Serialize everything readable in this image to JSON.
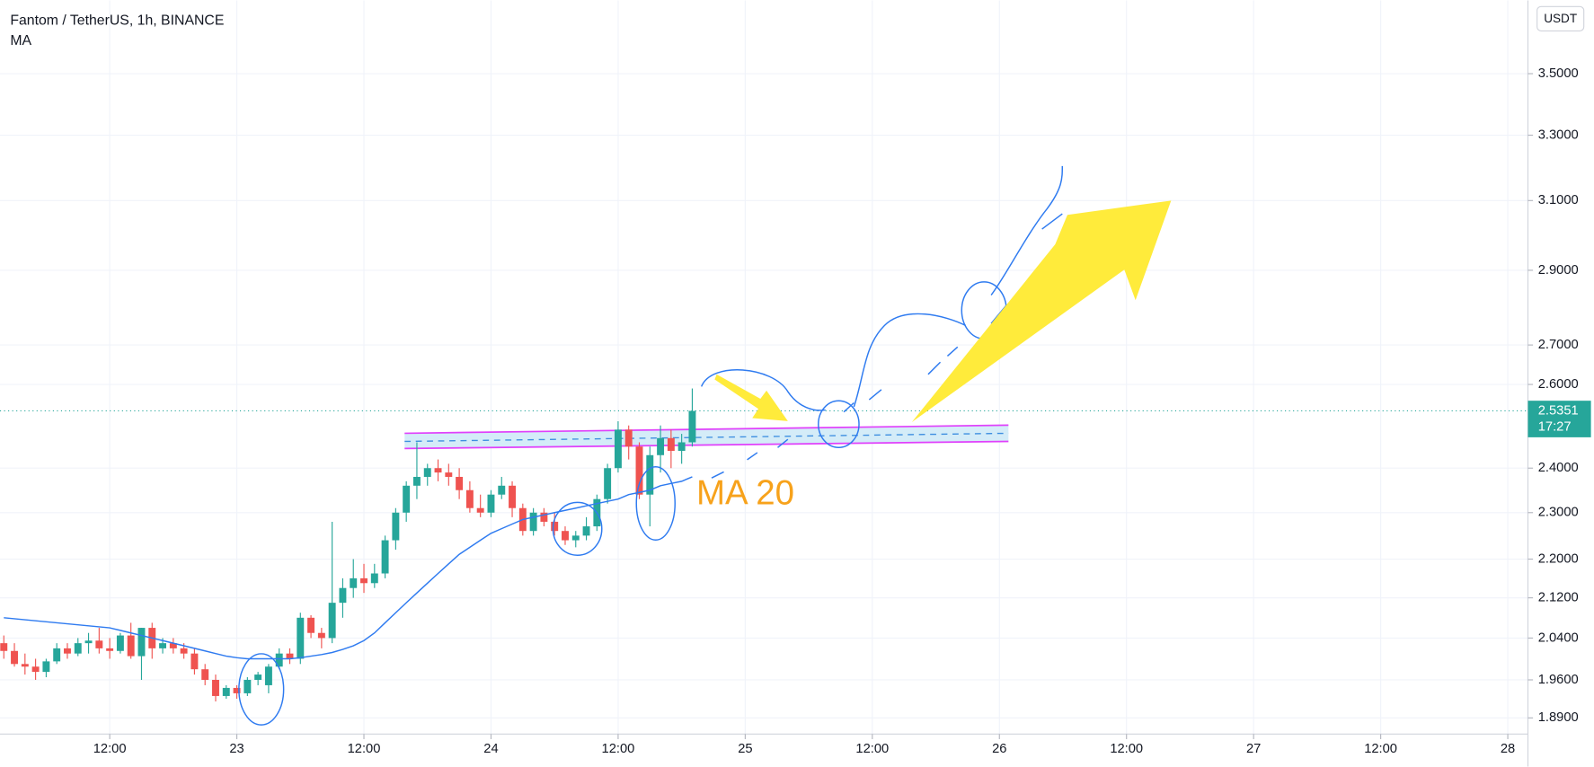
{
  "chart_data": {
    "type": "candlestick",
    "title": "Fantom / TetherUS, 1h, BINANCE",
    "y_unit": "USDT",
    "log_scale": true,
    "grid": true,
    "up_color": "#26a69a",
    "down_color": "#ef5350",
    "candles": {
      "x": [
        2,
        3,
        4,
        5,
        6,
        7,
        8,
        9,
        10,
        11,
        12,
        13,
        14,
        15,
        16,
        17,
        18,
        19,
        20,
        21,
        22,
        23,
        24,
        25,
        26,
        27,
        28,
        29,
        30,
        31,
        32,
        33,
        34,
        35,
        36,
        37,
        38,
        39,
        40,
        41,
        42,
        43,
        44,
        45,
        46,
        47,
        48,
        49,
        50,
        51,
        52,
        53,
        54,
        55,
        56,
        57,
        58,
        59,
        60,
        61,
        62,
        63,
        64,
        65,
        66,
        67
      ],
      "open": [
        2.03,
        2.015,
        1.99,
        1.985,
        1.975,
        1.995,
        2.02,
        2.01,
        2.03,
        2.035,
        2.02,
        2.015,
        2.045,
        2.005,
        2.06,
        2.02,
        2.03,
        2.02,
        2.01,
        1.98,
        1.96,
        1.93,
        1.945,
        1.935,
        1.96,
        1.95,
        1.985,
        2.01,
        2.0,
        2.08,
        2.05,
        2.04,
        2.11,
        2.14,
        2.16,
        2.15,
        2.17,
        2.24,
        2.3,
        2.36,
        2.38,
        2.4,
        2.39,
        2.38,
        2.35,
        2.31,
        2.3,
        2.34,
        2.36,
        2.31,
        2.26,
        2.3,
        2.28,
        2.26,
        2.24,
        2.25,
        2.27,
        2.33,
        2.4,
        2.49,
        2.45,
        2.34,
        2.43,
        2.47,
        2.44,
        2.46
      ],
      "high": [
        2.045,
        2.03,
        2.01,
        2.0,
        2.0,
        2.03,
        2.03,
        2.04,
        2.05,
        2.06,
        2.04,
        2.05,
        2.07,
        2.06,
        2.07,
        2.04,
        2.04,
        2.03,
        2.02,
        1.99,
        1.97,
        1.95,
        1.95,
        1.965,
        1.975,
        1.99,
        2.02,
        2.02,
        2.09,
        2.085,
        2.06,
        2.28,
        2.16,
        2.2,
        2.19,
        2.19,
        2.25,
        2.31,
        2.37,
        2.46,
        2.41,
        2.42,
        2.41,
        2.4,
        2.37,
        2.34,
        2.35,
        2.38,
        2.37,
        2.32,
        2.31,
        2.31,
        2.3,
        2.27,
        2.26,
        2.29,
        2.34,
        2.41,
        2.51,
        2.5,
        2.46,
        2.45,
        2.5,
        2.49,
        2.48,
        2.59
      ],
      "low": [
        2.0,
        1.985,
        1.97,
        1.96,
        1.965,
        1.99,
        2.0,
        2.005,
        2.01,
        2.01,
        2.0,
        2.01,
        2.0,
        1.96,
        2.0,
        2.01,
        2.01,
        2.0,
        1.97,
        1.95,
        1.92,
        1.925,
        1.925,
        1.93,
        1.95,
        1.935,
        1.98,
        1.99,
        1.99,
        2.04,
        2.02,
        2.03,
        2.08,
        2.12,
        2.13,
        2.14,
        2.16,
        2.22,
        2.28,
        2.33,
        2.36,
        2.37,
        2.36,
        2.33,
        2.3,
        2.29,
        2.29,
        2.33,
        2.29,
        2.25,
        2.25,
        2.27,
        2.25,
        2.23,
        2.225,
        2.24,
        2.26,
        2.32,
        2.39,
        2.42,
        2.33,
        2.27,
        2.39,
        2.4,
        2.41,
        2.45
      ],
      "close": [
        2.015,
        1.99,
        1.985,
        1.975,
        1.995,
        2.02,
        2.01,
        2.03,
        2.035,
        2.02,
        2.015,
        2.045,
        2.005,
        2.06,
        2.02,
        2.03,
        2.02,
        2.01,
        1.98,
        1.96,
        1.93,
        1.945,
        1.935,
        1.96,
        1.97,
        1.985,
        2.01,
        2.0,
        2.08,
        2.05,
        2.04,
        2.11,
        2.14,
        2.16,
        2.15,
        2.17,
        2.24,
        2.3,
        2.36,
        2.38,
        2.4,
        2.39,
        2.38,
        2.35,
        2.31,
        2.3,
        2.34,
        2.36,
        2.31,
        2.26,
        2.3,
        2.28,
        2.26,
        2.24,
        2.25,
        2.27,
        2.33,
        2.4,
        2.49,
        2.45,
        2.34,
        2.43,
        2.47,
        2.44,
        2.46,
        2.5351
      ]
    },
    "series": [
      {
        "name": "MA",
        "color": "#2f7bf0",
        "values": [
          2.08,
          2.078,
          2.076,
          2.074,
          2.072,
          2.07,
          2.068,
          2.066,
          2.064,
          2.062,
          2.06,
          2.055,
          2.05,
          2.045,
          2.04,
          2.035,
          2.03,
          2.025,
          2.02,
          2.015,
          2.01,
          2.005,
          2.002,
          2.0,
          2.0,
          2.0,
          2.0,
          2.0,
          2.002,
          2.005,
          2.008,
          2.012,
          2.018,
          2.025,
          2.035,
          2.05,
          2.07,
          2.09,
          2.11,
          2.13,
          2.15,
          2.17,
          2.19,
          2.21,
          2.225,
          2.24,
          2.255,
          2.265,
          2.275,
          2.285,
          2.29,
          2.295,
          2.3,
          2.305,
          2.31,
          2.315,
          2.32,
          2.325,
          2.33,
          2.34,
          2.345,
          2.35,
          2.36,
          2.365,
          2.37,
          2.38
        ]
      }
    ],
    "last_price": 2.5351,
    "countdown": "17:27",
    "annotation": "MA 20",
    "xlim": [
      1.64,
      145.9
    ],
    "xticks": [
      {
        "value": 12,
        "label": "12:00"
      },
      {
        "value": 24,
        "label": "23"
      },
      {
        "value": 36,
        "label": "12:00"
      },
      {
        "value": 48,
        "label": "24"
      },
      {
        "value": 60,
        "label": "12:00"
      },
      {
        "value": 72,
        "label": "25"
      },
      {
        "value": 84,
        "label": "12:00"
      },
      {
        "value": 96,
        "label": "26"
      },
      {
        "value": 108,
        "label": "12:00"
      },
      {
        "value": 120,
        "label": "27"
      },
      {
        "value": 132,
        "label": "12:00"
      },
      {
        "value": 144,
        "label": "28"
      }
    ],
    "ylim": [
      1.861,
      3.754
    ],
    "yticks": [
      {
        "value": 1.89,
        "label": "1.8900"
      },
      {
        "value": 1.96,
        "label": "1.9600"
      },
      {
        "value": 2.04,
        "label": "2.0400"
      },
      {
        "value": 2.12,
        "label": "2.1200"
      },
      {
        "value": 2.2,
        "label": "2.2000"
      },
      {
        "value": 2.3,
        "label": "2.3000"
      },
      {
        "value": 2.4,
        "label": "2.4000"
      },
      {
        "value": 2.6,
        "label": "2.6000"
      },
      {
        "value": 2.7,
        "label": "2.7000"
      },
      {
        "value": 2.9,
        "label": "2.9000"
      },
      {
        "value": 3.1,
        "label": "3.1000"
      },
      {
        "value": 3.3,
        "label": "3.3000"
      },
      {
        "value": 3.5,
        "label": "3.5000"
      }
    ]
  }
}
